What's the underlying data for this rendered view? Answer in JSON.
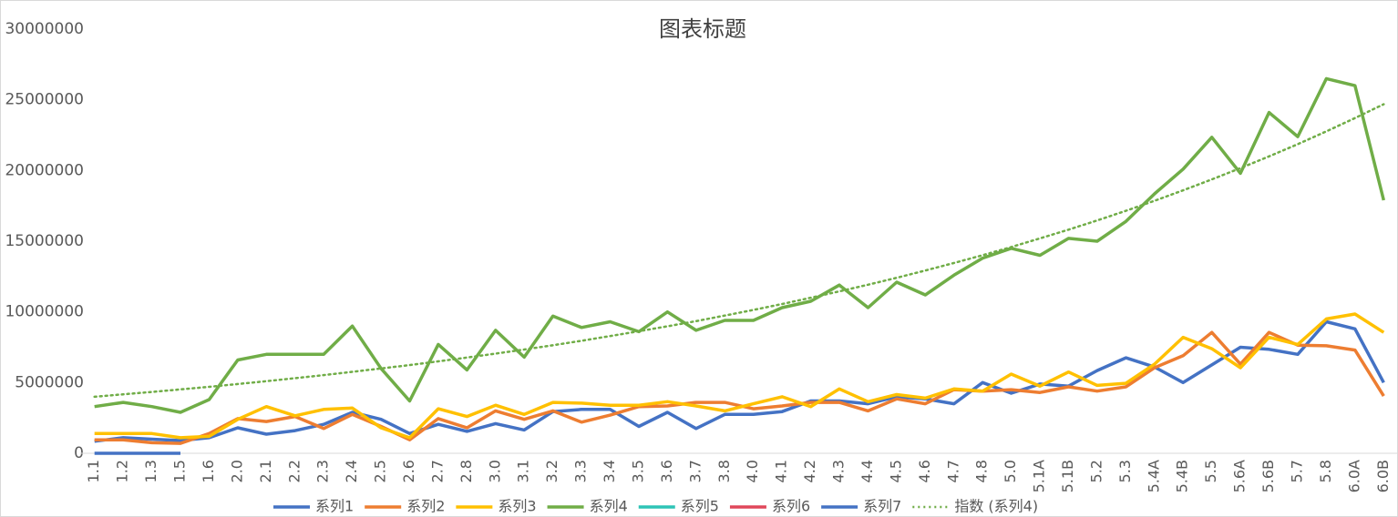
{
  "chart_data": {
    "type": "line",
    "title": "图表标题",
    "categories": [
      "1.1",
      "1.2",
      "1.3",
      "1.5",
      "1.6",
      "2.0",
      "2.1",
      "2.2",
      "2.3",
      "2.4",
      "2.5",
      "2.6",
      "2.7",
      "2.8",
      "3.0",
      "3.1",
      "3.2",
      "3.3",
      "3.4",
      "3.5",
      "3.6",
      "3.7",
      "3.8",
      "4.0",
      "4.1",
      "4.2",
      "4.3",
      "4.4",
      "4.5",
      "4.6",
      "4.7",
      "4.8",
      "5.0",
      "5.1A",
      "5.1B",
      "5.2",
      "5.3",
      "5.4A",
      "5.4B",
      "5.5",
      "5.6A",
      "5.6B",
      "5.7",
      "5.8",
      "6.0A",
      "6.0B"
    ],
    "ylim": [
      0,
      30000000
    ],
    "yticks": [
      0,
      5000000,
      10000000,
      15000000,
      20000000,
      25000000,
      30000000
    ],
    "grid": false,
    "legend": "bottom",
    "series": [
      {
        "name": "系列1",
        "color": "#4472c4",
        "values": [
          850000,
          1100000,
          1000000,
          900000,
          1100000,
          1800000,
          1350000,
          1600000,
          2050000,
          2900000,
          2400000,
          1400000,
          2050000,
          1550000,
          2100000,
          1650000,
          2950000,
          3100000,
          3100000,
          1900000,
          2900000,
          1750000,
          2750000,
          2750000,
          2950000,
          3700000,
          3700000,
          3500000,
          4000000,
          3850000,
          3500000,
          5000000,
          4250000,
          4900000,
          4750000,
          5850000,
          6750000,
          6100000,
          5000000,
          6250000,
          7500000,
          7350000,
          7000000,
          9300000,
          8800000,
          5000000
        ]
      },
      {
        "name": "系列2",
        "color": "#ed7d31",
        "values": [
          950000,
          950000,
          750000,
          700000,
          1400000,
          2450000,
          2250000,
          2600000,
          1750000,
          2750000,
          1900000,
          950000,
          2450000,
          1800000,
          3000000,
          2400000,
          3000000,
          2200000,
          2700000,
          3300000,
          3350000,
          3600000,
          3600000,
          3150000,
          3350000,
          3600000,
          3600000,
          3000000,
          3850000,
          3500000,
          4500000,
          4400000,
          4500000,
          4300000,
          4700000,
          4400000,
          4700000,
          6050000,
          6900000,
          8550000,
          6300000,
          8550000,
          7650000,
          7600000,
          7300000,
          4050000
        ]
      },
      {
        "name": "系列3",
        "color": "#ffc000",
        "values": [
          1400000,
          1400000,
          1400000,
          1100000,
          1200000,
          2400000,
          3300000,
          2650000,
          3100000,
          3200000,
          1800000,
          1100000,
          3150000,
          2600000,
          3400000,
          2750000,
          3600000,
          3550000,
          3400000,
          3400000,
          3650000,
          3350000,
          3000000,
          3500000,
          4000000,
          3300000,
          4550000,
          3650000,
          4150000,
          3900000,
          4550000,
          4400000,
          5600000,
          4750000,
          5750000,
          4800000,
          4950000,
          6300000,
          8200000,
          7400000,
          6050000,
          8200000,
          7700000,
          9500000,
          9850000,
          8550000
        ]
      },
      {
        "name": "系列4",
        "color": "#70ad47",
        "values": [
          3300000,
          3600000,
          3300000,
          2900000,
          3800000,
          6600000,
          7000000,
          7000000,
          7000000,
          9000000,
          6000000,
          3700000,
          7700000,
          5900000,
          8700000,
          6800000,
          9700000,
          8900000,
          9300000,
          8600000,
          10000000,
          8700000,
          9400000,
          9400000,
          10300000,
          10750000,
          11900000,
          10300000,
          12100000,
          11200000,
          12600000,
          13800000,
          14500000,
          14000000,
          15200000,
          15000000,
          16400000,
          18350000,
          20100000,
          22350000,
          19800000,
          24100000,
          22400000,
          26500000,
          26000000,
          17900000
        ]
      },
      {
        "name": "系列5",
        "color": "#2ec4b6",
        "values": [
          null,
          null,
          null,
          null,
          null,
          null,
          null,
          null,
          null,
          null,
          null,
          null,
          null,
          null,
          null,
          null,
          null,
          null,
          null,
          null,
          null,
          null,
          null,
          null,
          null,
          null,
          null,
          null,
          null,
          null,
          null,
          null,
          null,
          null,
          null,
          null,
          null,
          null,
          null,
          null,
          null,
          null,
          null,
          null,
          null,
          null
        ]
      },
      {
        "name": "系列6",
        "color": "#e0475a",
        "values": [
          null,
          null,
          null,
          null,
          null,
          null,
          null,
          null,
          null,
          null,
          null,
          null,
          null,
          null,
          null,
          null,
          null,
          null,
          null,
          null,
          null,
          null,
          null,
          null,
          null,
          null,
          null,
          null,
          null,
          null,
          null,
          null,
          null,
          null,
          null,
          null,
          null,
          null,
          null,
          null,
          null,
          null,
          null,
          null,
          null,
          null
        ]
      },
      {
        "name": "系列7",
        "color": "#4472c4",
        "values": [
          0,
          0,
          0,
          0,
          null,
          null,
          null,
          null,
          null,
          null,
          null,
          null,
          null,
          null,
          null,
          null,
          null,
          null,
          null,
          null,
          null,
          null,
          null,
          null,
          null,
          null,
          null,
          null,
          null,
          null,
          null,
          null,
          null,
          null,
          null,
          null,
          null,
          null,
          null,
          null,
          null,
          null,
          null,
          null,
          null,
          null
        ]
      },
      {
        "name": "指数 (系列4)",
        "color": "#70ad47",
        "dash": "dotted",
        "values": [
          4000000,
          4170000,
          4340000,
          4520000,
          4700000,
          4900000,
          5100000,
          5310000,
          5530000,
          5760000,
          6000000,
          6240000,
          6500000,
          6770000,
          7050000,
          7340000,
          7640000,
          7960000,
          8290000,
          8630000,
          8980000,
          9350000,
          9740000,
          10140000,
          10560000,
          11000000,
          11450000,
          11920000,
          12410000,
          12930000,
          13460000,
          14010000,
          14590000,
          15200000,
          15820000,
          16470000,
          17150000,
          17860000,
          18600000,
          19370000,
          20170000,
          21000000,
          21860000,
          22770000,
          23710000,
          24690000
        ]
      }
    ]
  }
}
